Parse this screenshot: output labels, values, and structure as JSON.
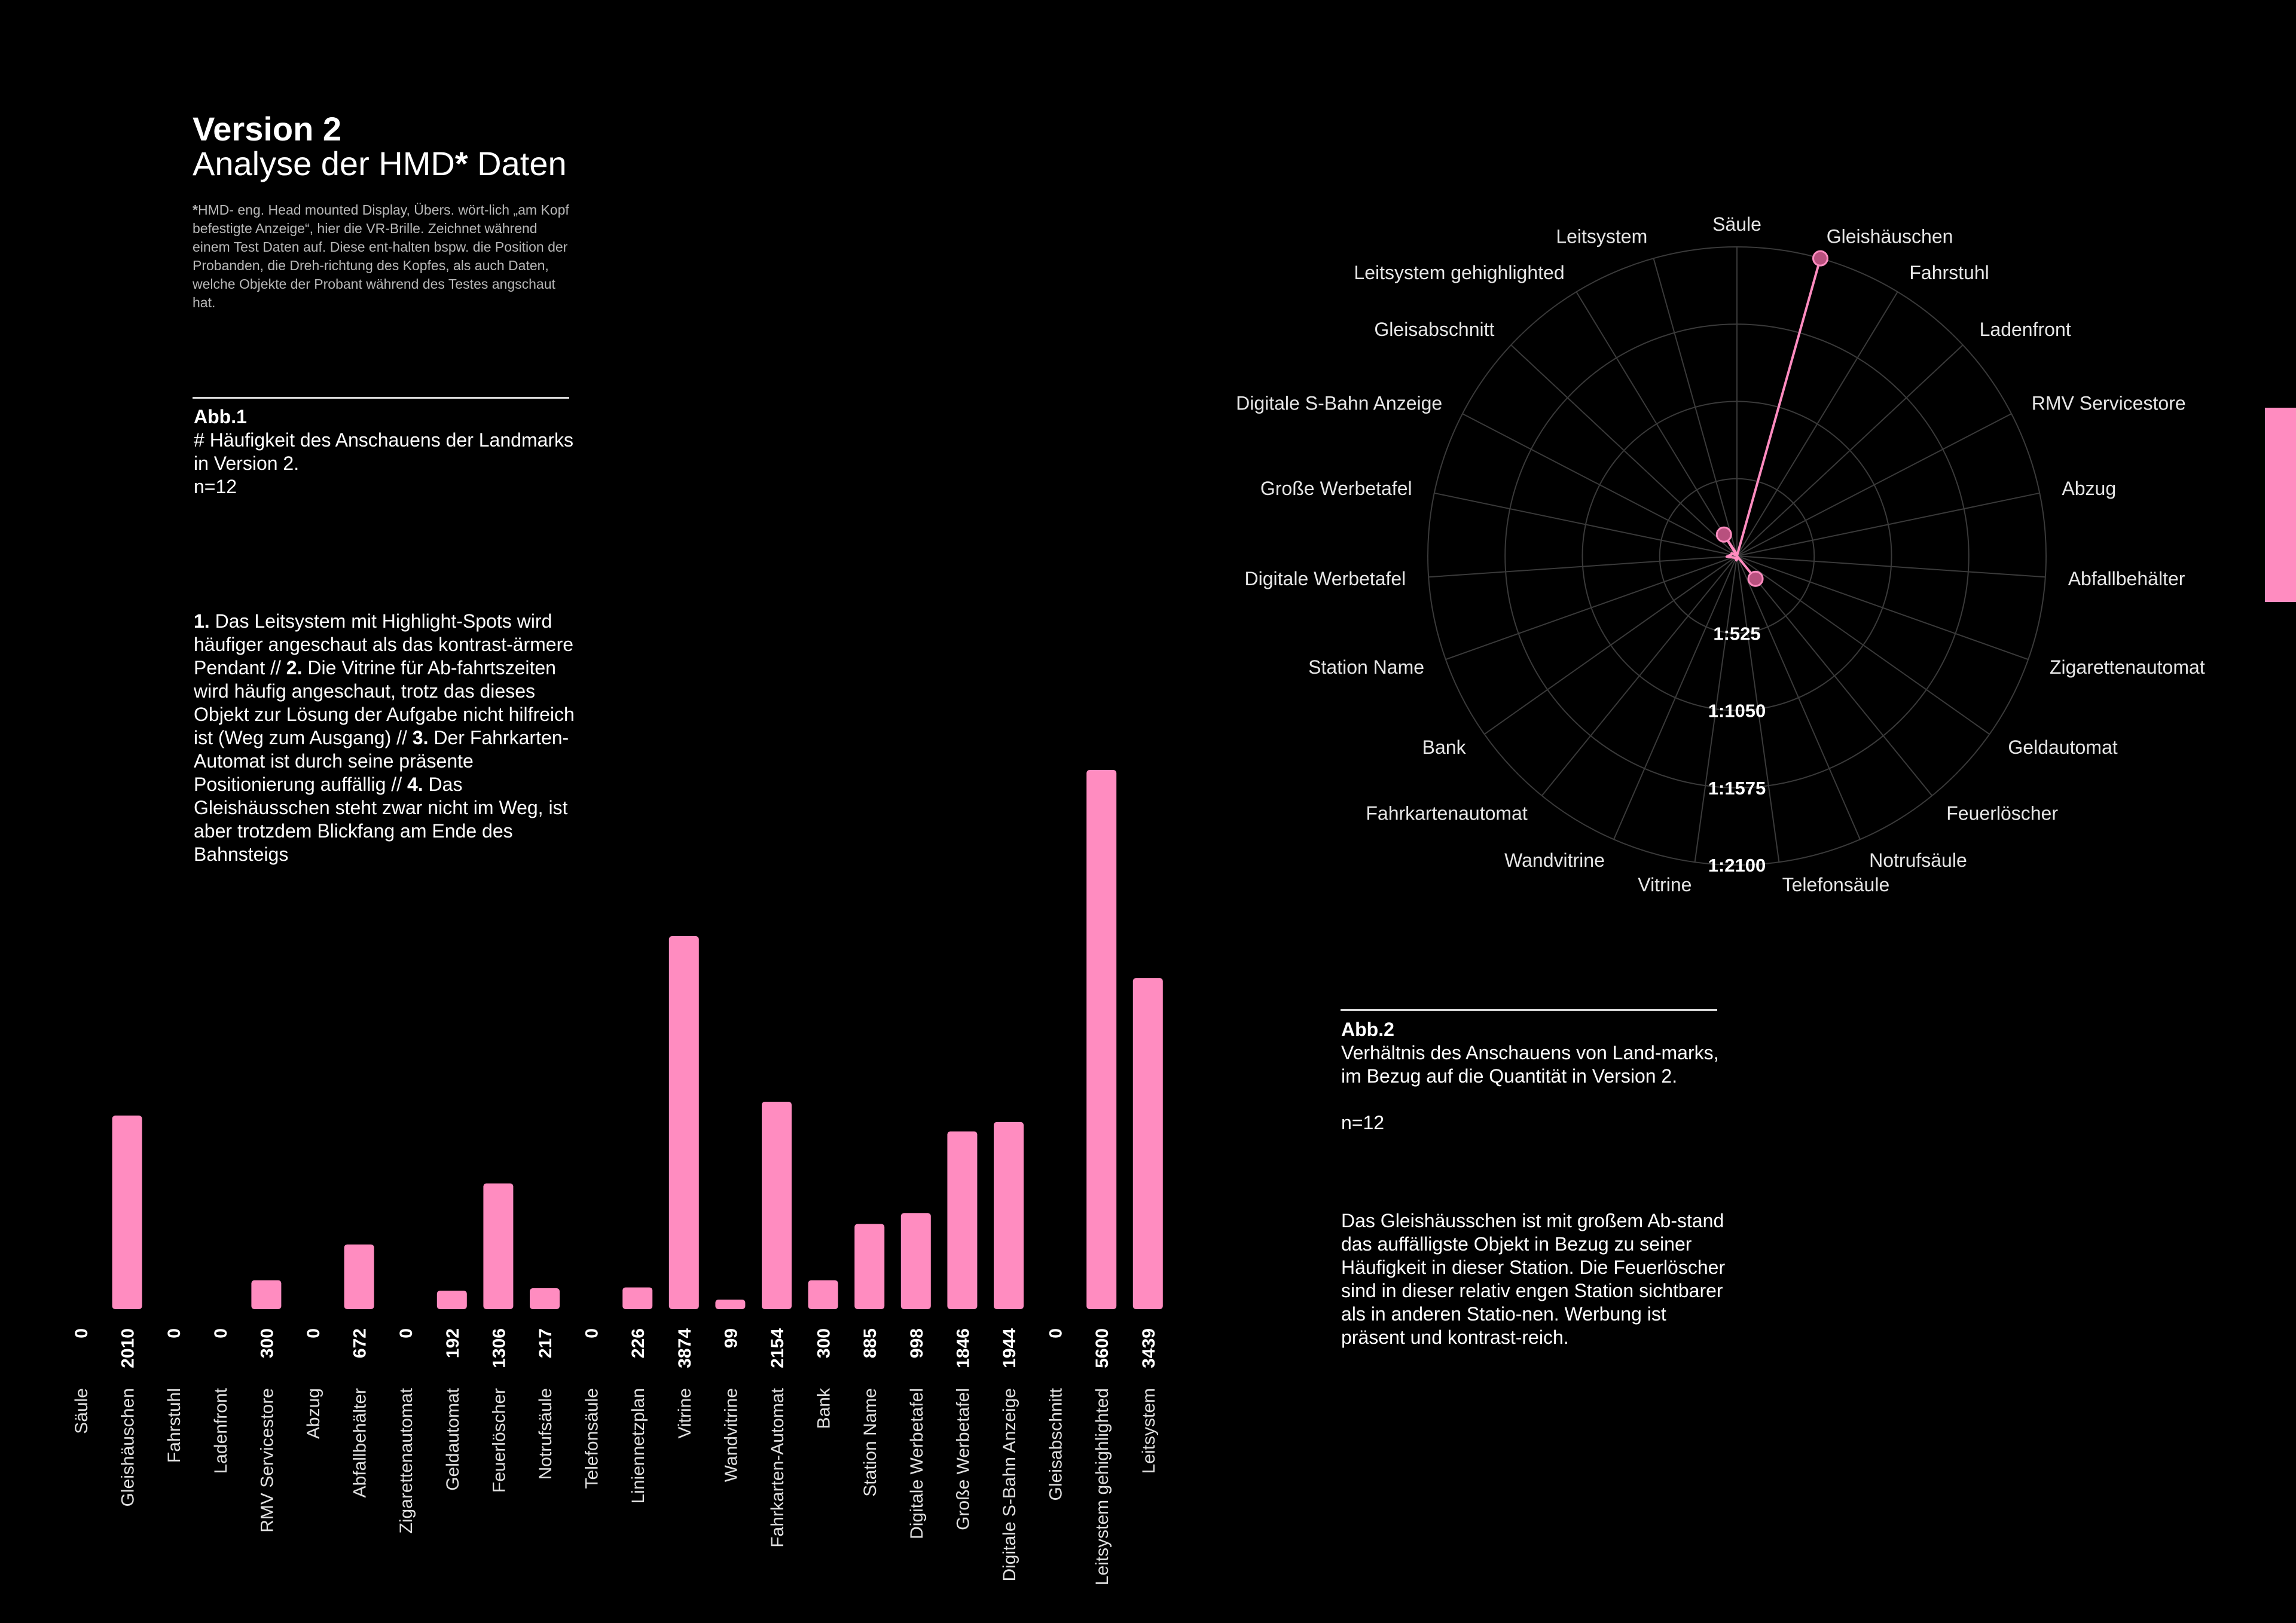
{
  "header": {
    "title": "Version 2",
    "subtitle_pre": "Analyse der HMD",
    "subtitle_star": "*",
    "subtitle_post": " Daten",
    "footnote_star": "*",
    "footnote": "HMD- eng. Head mounted Display, Übers. wört-lich „am Kopf befestigte Anzeige“, hier die VR-Brille. Zeichnet während einem Test Daten auf. Diese ent-halten bspw. die Position der Probanden, die Dreh-richtung des Kopfes, als auch Daten, welche Objekte der Probant während des Testes angschaut hat."
  },
  "abb1": {
    "label": "Abb.1",
    "text": "# Häufigkeit des Anschauens der Landmarks in Version 2.",
    "n": "n=12"
  },
  "findings": [
    {
      "num": "1.",
      "text": " Das Leitsystem mit Highlight-Spots wird häufiger angeschaut als das kontrast-ärmere Pendant // "
    },
    {
      "num": "2.",
      "text": " Die Vitrine für Ab-fahrtszeiten wird häufig angeschaut, trotz das dieses Objekt zur Lösung der Aufgabe nicht hilfreich ist (Weg zum Ausgang) // "
    },
    {
      "num": "3.",
      "text": " Der Fahrkarten-Automat ist durch seine präsente Positionierung auffällig // "
    },
    {
      "num": "4.",
      "text": " Das Gleishäusschen steht zwar nicht im Weg, ist aber trotzdem Blickfang am Ende des Bahnsteigs"
    }
  ],
  "abb2": {
    "label": "Abb.2",
    "text": "Verhältnis des Anschauens von Land-marks, im Bezug auf die Quantität in Version 2.",
    "n": "n=12",
    "note": "Das Gleishäusschen ist mit großem Ab-stand das auffälligste Objekt in Bezug zu seiner Häufigkeit in dieser Station. Die Feuerlöscher sind in dieser relativ engen Station sichtbarer als in anderen Statio-nen. Werbung ist präsent und kontrast-reich."
  },
  "colors": {
    "accent": "#ff8cc0",
    "background": "#000000",
    "grid": "#3a3a3a"
  },
  "chart_data": [
    {
      "type": "bar",
      "categories": [
        "Säule",
        "Gleishäuschen",
        "Fahrstuhl",
        "Ladenfront",
        "RMV Servicestore",
        "Abzug",
        "Abfallbehälter",
        "Zigarettenautomat",
        "Geldautomat",
        "Feuerlöscher",
        "Notrufsäule",
        "Telefonsäule",
        "Liniennetzplan",
        "Vitrine",
        "Wandvitrine",
        "Fahrkarten-Automat",
        "Bank",
        "Station Name",
        "Digitale Werbetafel",
        "Große Werbetafel",
        "Digitale S-Bahn Anzeige",
        "Gleisabschnitt",
        "Leitsystem gehighlighted",
        "Leitsystem"
      ],
      "values": [
        0,
        2010,
        0,
        0,
        300,
        0,
        672,
        0,
        192,
        1306,
        217,
        0,
        226,
        3874,
        99,
        2154,
        300,
        885,
        998,
        1846,
        1944,
        0,
        5600,
        3439
      ],
      "value_labels": [
        "0",
        "2010",
        "0",
        "0",
        "300",
        "0",
        "672",
        "0",
        "192",
        "1306",
        "217",
        "0",
        "226",
        "3874",
        "99",
        "2154",
        "300",
        "885",
        "998",
        "1846",
        "1944",
        "0",
        "5600",
        "3439"
      ],
      "color": "#ff8cc0",
      "ylim": [
        0,
        5600
      ]
    },
    {
      "type": "radar",
      "axes": [
        "Säule",
        "Gleishäuschen",
        "Fahrstuhl",
        "Ladenfront",
        "RMV Servicestore",
        "Abzug",
        "Abfallbehälter",
        "Zigarettenautomat",
        "Geldautomat",
        "Feuerlöscher",
        "Notrufsäule",
        "Telefonsäule",
        "Vitrine",
        "Wandvitrine",
        "Fahrkartenautomat",
        "Bank",
        "Station Name",
        "Digitale Werbetafel",
        "Große Werbetafel",
        "Digitale S-Bahn Anzeige",
        "Gleisabschnitt",
        "Leitsystem gehighlighted",
        "Leitsystem"
      ],
      "ring_labels": [
        "1:525",
        "1:1050",
        "1:1575",
        "1:2100"
      ],
      "rmax": 2100,
      "values": [
        0,
        2100,
        0,
        0,
        0,
        0,
        0,
        0,
        0,
        200,
        0,
        20,
        30,
        20,
        20,
        20,
        30,
        70,
        40,
        40,
        0,
        170,
        20
      ],
      "markers": [
        "Gleishäuschen",
        "Feuerlöscher",
        "Leitsystem gehighlighted"
      ],
      "color": "#ff8cc0"
    }
  ]
}
